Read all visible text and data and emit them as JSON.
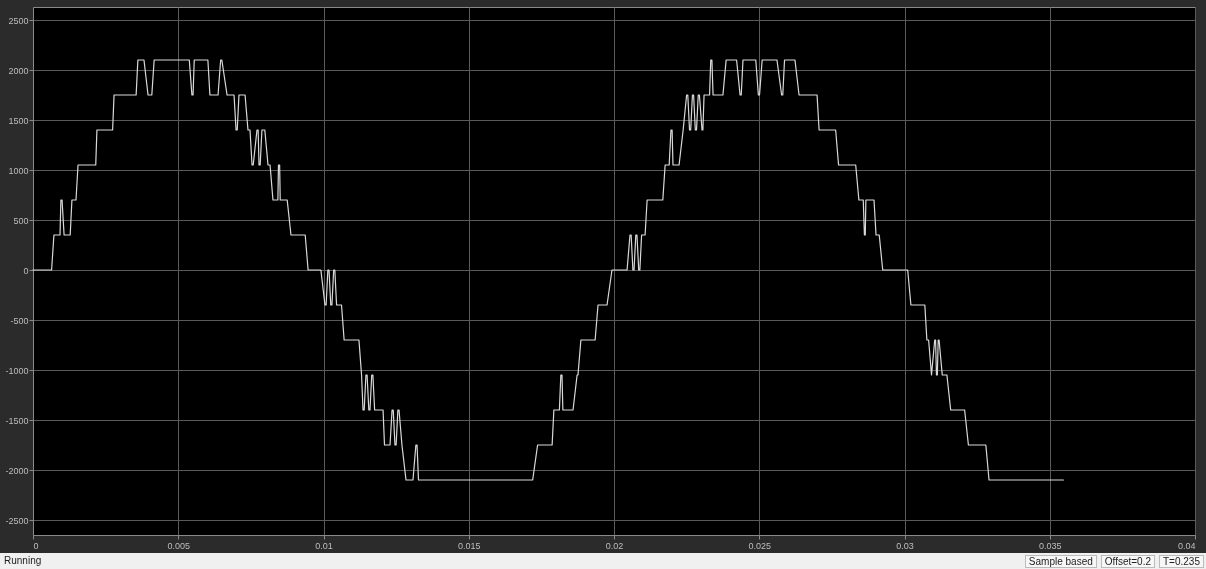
{
  "chart_data": {
    "type": "line",
    "annotations": [
      "Running",
      "Sample based",
      "Offset=0.2",
      "T=0.235"
    ],
    "xlim": [
      0,
      0.04
    ],
    "xticks": [
      0,
      0.005,
      0.01,
      0.015,
      0.02,
      0.025,
      0.03,
      0.035,
      0.04
    ],
    "ylim": [
      -2650,
      2630
    ],
    "yticks": [
      -2500,
      -2000,
      -1500,
      -1000,
      -500,
      0,
      500,
      1000,
      1500,
      2000,
      2500
    ],
    "grid": true,
    "marker": "none",
    "line_style": "solid",
    "series": [
      {
        "color": "#d9d9d9",
        "x": [
          0,
          0.00064,
          0.00072,
          0.00093,
          0.00096,
          0.001,
          0.00107,
          0.00128,
          0.00134,
          0.00148,
          0.00155,
          0.00216,
          0.0022,
          0.00274,
          0.00279,
          0.00355,
          0.00361,
          0.00382,
          0.00396,
          0.00409,
          0.00417,
          0.00538,
          0.00547,
          0.00551,
          0.00555,
          0.00602,
          0.00609,
          0.00637,
          0.00646,
          0.0065,
          0.00668,
          0.00692,
          0.00699,
          0.00703,
          0.00709,
          0.0073,
          0.0074,
          0.00747,
          0.00754,
          0.00758,
          0.00771,
          0.00775,
          0.00778,
          0.00782,
          0.00788,
          0.00798,
          0.00809,
          0.00816,
          0.00826,
          0.00843,
          0.00845,
          0.00849,
          0.00851,
          0.00875,
          0.00888,
          0.00937,
          0.00947,
          0.00991,
          0.01005,
          0.01009,
          0.01015,
          0.01019,
          0.01025,
          0.01029,
          0.01035,
          0.01039,
          0.01045,
          0.01062,
          0.01071,
          0.01122,
          0.01131,
          0.01136,
          0.0114,
          0.01146,
          0.0115,
          0.01156,
          0.0116,
          0.01166,
          0.0117,
          0.01176,
          0.01205,
          0.0121,
          0.01229,
          0.01236,
          0.0124,
          0.01246,
          0.0125,
          0.01256,
          0.0126,
          0.0127,
          0.01284,
          0.01308,
          0.01318,
          0.01322,
          0.01327,
          0.0172,
          0.01737,
          0.01787,
          0.01793,
          0.01812,
          0.01817,
          0.01821,
          0.01824,
          0.01859,
          0.01873,
          0.01876,
          0.01886,
          0.01935,
          0.01945,
          0.01976,
          0.01993,
          0.02045,
          0.02055,
          0.02059,
          0.02065,
          0.02069,
          0.02075,
          0.02079,
          0.02085,
          0.02089,
          0.02095,
          0.02107,
          0.02114,
          0.02168,
          0.02176,
          0.0219,
          0.02196,
          0.022,
          0.02203,
          0.02224,
          0.02238,
          0.0225,
          0.02254,
          0.0226,
          0.02264,
          0.0227,
          0.02274,
          0.0228,
          0.02284,
          0.0229,
          0.02294,
          0.02303,
          0.02306,
          0.0231,
          0.02329,
          0.02333,
          0.02337,
          0.02341,
          0.02375,
          0.02386,
          0.02422,
          0.02434,
          0.02438,
          0.02444,
          0.02488,
          0.02497,
          0.02501,
          0.0251,
          0.02561,
          0.02577,
          0.02581,
          0.02587,
          0.02623,
          0.02637,
          0.02699,
          0.02706,
          0.02763,
          0.02773,
          0.02832,
          0.02843,
          0.02858,
          0.02862,
          0.02865,
          0.02867,
          0.02895,
          0.02902,
          0.02913,
          0.02925,
          0.03011,
          0.03022,
          0.0307,
          0.03077,
          0.03083,
          0.03093,
          0.03104,
          0.03107,
          0.0311,
          0.03113,
          0.03116,
          0.03119,
          0.0313,
          0.03146,
          0.03159,
          0.03207,
          0.0322,
          0.0328,
          0.03291,
          0.03547
        ],
        "values": [
          0,
          0,
          350,
          350,
          700,
          700,
          350,
          350,
          700,
          700,
          1050,
          1050,
          1400,
          1400,
          1750,
          1750,
          2100,
          2100,
          1750,
          1750,
          2100,
          2100,
          1750,
          1750,
          2100,
          2100,
          1750,
          1750,
          2100,
          2100,
          1750,
          1750,
          1400,
          1400,
          1750,
          1750,
          1400,
          1400,
          1050,
          1050,
          1400,
          1400,
          1050,
          1050,
          1400,
          1400,
          1050,
          1050,
          700,
          700,
          1050,
          1050,
          700,
          700,
          350,
          350,
          0,
          0,
          -350,
          -350,
          0,
          0,
          -350,
          -350,
          0,
          0,
          -350,
          -350,
          -700,
          -700,
          -1050,
          -1400,
          -1400,
          -1050,
          -1050,
          -1400,
          -1400,
          -1050,
          -1050,
          -1400,
          -1400,
          -1750,
          -1750,
          -1400,
          -1400,
          -1750,
          -1750,
          -1400,
          -1400,
          -1750,
          -2100,
          -2100,
          -1750,
          -1750,
          -2100,
          -2100,
          -1750,
          -1750,
          -1400,
          -1400,
          -1050,
          -1050,
          -1400,
          -1400,
          -1050,
          -1050,
          -700,
          -700,
          -350,
          -350,
          0,
          0,
          350,
          350,
          0,
          0,
          350,
          350,
          0,
          0,
          350,
          350,
          700,
          700,
          1050,
          1050,
          1400,
          1400,
          1050,
          1050,
          1400,
          1750,
          1750,
          1400,
          1400,
          1750,
          1750,
          1400,
          1400,
          1750,
          1750,
          1400,
          1400,
          1750,
          1750,
          2100,
          2100,
          1750,
          1750,
          2100,
          2100,
          1750,
          1750,
          2100,
          2100,
          1750,
          1750,
          2100,
          2100,
          1750,
          1750,
          2100,
          2100,
          1750,
          1750,
          1400,
          1400,
          1050,
          1050,
          700,
          700,
          350,
          350,
          700,
          700,
          350,
          350,
          0,
          0,
          -350,
          -350,
          -700,
          -700,
          -1050,
          -700,
          -700,
          -1050,
          -1050,
          -700,
          -700,
          -1050,
          -1050,
          -1400,
          -1400,
          -1750,
          -1750,
          -2100,
          -2100
        ]
      }
    ]
  }
}
